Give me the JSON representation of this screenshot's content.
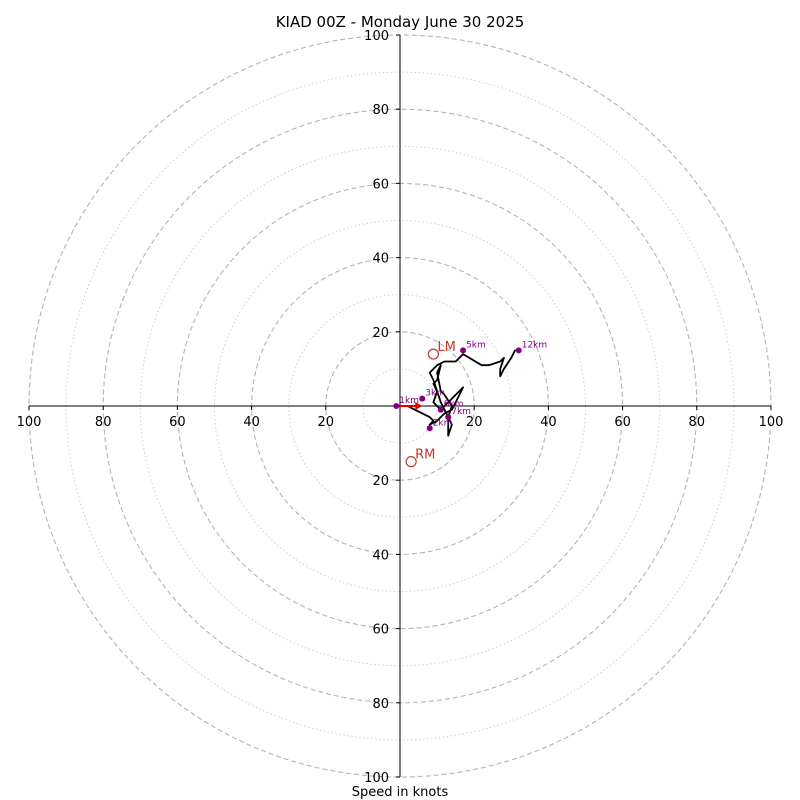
{
  "chart_data": {
    "type": "line",
    "plot_kind": "hodograph",
    "title": "KIAD 00Z - Monday June 30 2025",
    "xlabel": "Speed in knots",
    "xlim": [
      -100,
      100
    ],
    "ylim": [
      -100,
      100
    ],
    "ring_major": [
      20,
      40,
      60,
      80,
      100
    ],
    "ring_minor": [
      10,
      30,
      50,
      70,
      90
    ],
    "x_tick_labels": [
      "100",
      "80",
      "60",
      "40",
      "20",
      "20",
      "40",
      "60",
      "80",
      "100"
    ],
    "y_tick_labels": [
      "100",
      "80",
      "60",
      "40",
      "20",
      "20",
      "40",
      "60",
      "80",
      "100"
    ],
    "colors": {
      "trace": "#000000",
      "marker": "#800080",
      "storm_motion": "#c0392b",
      "mean_wind_arrow": "#e00000",
      "grid": "#b4b4b4",
      "axis": "#000000"
    },
    "series": [
      {
        "points": [
          [
            -1,
            0
          ],
          [
            2,
            0
          ],
          [
            4,
            -1
          ],
          [
            6,
            -2
          ],
          [
            8,
            -3
          ],
          [
            9,
            -4
          ],
          [
            8,
            -5
          ],
          [
            10,
            -4
          ],
          [
            11,
            -3
          ],
          [
            12,
            -2
          ],
          [
            14,
            -1
          ],
          [
            16,
            3
          ],
          [
            17,
            5
          ],
          [
            14,
            2
          ],
          [
            11,
            -1
          ],
          [
            9,
            1
          ],
          [
            10,
            4
          ],
          [
            9,
            6
          ],
          [
            10,
            7
          ],
          [
            11,
            11
          ],
          [
            10,
            9
          ],
          [
            11,
            4
          ],
          [
            12,
            3
          ],
          [
            14,
            0
          ],
          [
            13,
            -3
          ],
          [
            13,
            -8
          ],
          [
            14,
            -5
          ],
          [
            13,
            -3
          ],
          [
            11,
            1
          ],
          [
            10,
            4
          ],
          [
            9,
            7
          ],
          [
            8,
            9
          ],
          [
            10,
            11
          ],
          [
            12,
            12
          ],
          [
            15,
            12
          ],
          [
            17,
            14
          ],
          [
            22,
            11
          ],
          [
            24,
            11
          ],
          [
            27,
            12
          ],
          [
            28,
            13
          ],
          [
            27,
            10
          ],
          [
            27,
            8
          ],
          [
            28,
            10
          ],
          [
            30,
            13
          ],
          [
            31,
            15
          ]
        ]
      }
    ],
    "height_markers": [
      {
        "label": "1km",
        "u": -1,
        "v": 0
      },
      {
        "label": "2km",
        "u": 8,
        "v": -6
      },
      {
        "label": "3km",
        "u": 6,
        "v": 2
      },
      {
        "label": "5km",
        "u": 17,
        "v": 15
      },
      {
        "label": "6km",
        "u": 11,
        "v": -1
      },
      {
        "label": "7km",
        "u": 13,
        "v": -3
      },
      {
        "label": "12km",
        "u": 32,
        "v": 15
      }
    ],
    "storm_motion": [
      {
        "label": "LM",
        "u": 9,
        "v": 14
      },
      {
        "label": "RM",
        "u": 3,
        "v": -15
      }
    ],
    "mean_wind_arrow": {
      "from_u": 0,
      "from_v": 0,
      "to_u": 6,
      "to_v": 0
    }
  }
}
